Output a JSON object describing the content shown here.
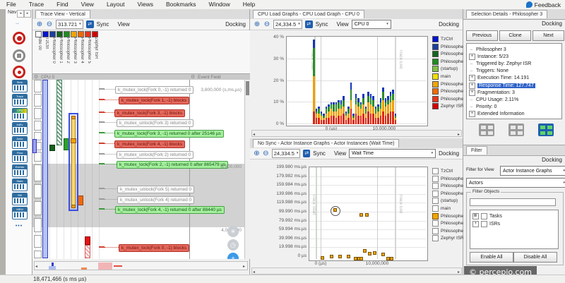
{
  "menu": {
    "items": [
      "File",
      "Trace",
      "Find",
      "View",
      "Layout",
      "Views",
      "Bookmarks",
      "Window",
      "Help"
    ],
    "feedback_label": "Feedback"
  },
  "sidebar": {
    "nav_label": "Nav",
    "record_buttons": [
      {
        "name": "record-button",
        "kind": "record"
      },
      {
        "name": "stop-button",
        "kind": "stop"
      },
      {
        "name": "reconnect-target-button",
        "kind": "target"
      }
    ],
    "view_icons": [
      {
        "name": "stream-view-icon",
        "label": "Strm"
      },
      {
        "name": "vertical-trace-view-icon",
        "label": "Trace"
      },
      {
        "name": "cpu-load-view-icon",
        "label": "CPU"
      },
      {
        "name": "interval-plot-view-icon",
        "label": "IntEv"
      },
      {
        "name": "actor-graph-view-icon",
        "label": "Actor"
      },
      {
        "name": "communication-flow-view-icon",
        "label": "Flow"
      },
      {
        "name": "event-log-view-icon",
        "label": "Events"
      },
      {
        "name": "state-graph-view-icon",
        "label": "State"
      },
      {
        "name": "state-machine-view-icon",
        "label": "SM"
      },
      {
        "name": "memory-view-icon",
        "label": "MEM"
      }
    ],
    "more_label": "•••"
  },
  "actors": [
    {
      "label": "TzCtrl",
      "color": "#0013cf"
    },
    {
      "label": "Philosopher 0",
      "color": "#1b3f9e"
    },
    {
      "label": "Philosopher 1",
      "color": "#14631e"
    },
    {
      "label": "Philosopher 2",
      "color": "#1f8c1f"
    },
    {
      "label": "(startup)",
      "color": "#7dc242"
    },
    {
      "label": "main",
      "color": "#efe000"
    },
    {
      "label": "Philosopher 3",
      "color": "#f0a500"
    },
    {
      "label": "Philosopher 4",
      "color": "#f26a00"
    },
    {
      "label": "Philosopher 5",
      "color": "#e6341c"
    },
    {
      "label": "Zephyr ISR",
      "color": "#d40000"
    }
  ],
  "trace_view": {
    "tab_title": "Trace View - Vertical",
    "toolbar": {
      "zoom_value": "313.721",
      "sync_label": "Sync",
      "view_label": "View",
      "docking_label": "Docking"
    },
    "columns": [
      {
        "label": "Idle 00",
        "color": "#ffffff"
      },
      {
        "label": "TzCtrl",
        "color": "#0013cf"
      },
      {
        "label": "Philosopher 0",
        "color": "#1b3f9e"
      },
      {
        "label": "Philosopher 1",
        "color": "#14631e"
      },
      {
        "label": "Philosopher 2",
        "color": "#1f8c1f"
      },
      {
        "label": "Philosopher 3",
        "color": "#f0a500"
      },
      {
        "label": "Philosopher 4",
        "color": "#f26a00"
      },
      {
        "label": "Philosopher 5",
        "color": "#e6341c"
      },
      {
        "label": "Zephyr ISR",
        "color": "#d40000"
      }
    ],
    "section_headers": [
      "CPU 0",
      "Event Field"
    ],
    "time_labels": [
      {
        "text": "3,800,000 (s,ms,µs)",
        "y": 11
      },
      {
        "text": "3,900,000",
        "y": 120
      },
      {
        "text": "4,000,000",
        "y": 210
      }
    ],
    "events": [
      {
        "text": "k_mutex_lock(Fork 0, -1) returned 0",
        "type": "normal",
        "y": 9,
        "x": 117
      },
      {
        "text": "k_mutex_lock(Fork 1, -1) blocks",
        "type": "blocked",
        "y": 24,
        "x": 122
      },
      {
        "text": "k_mutex_lock(Fork 3, -1) blocks",
        "type": "blocked",
        "y": 42,
        "x": 116
      },
      {
        "text": "k_mutex_unlock(Fork 3) returned 0",
        "type": "normal",
        "y": 56,
        "x": 119
      },
      {
        "text": "k_mutex_lock(Fork 3, -1) returned 0 after 25146 µs",
        "type": "resumed",
        "y": 71,
        "x": 116
      },
      {
        "text": "k_mutex_lock(Fork 4, -1) blocks",
        "type": "blocked",
        "y": 86,
        "x": 116
      },
      {
        "text": "k_mutex_unlock(Fork 2) returned 0",
        "type": "normal",
        "y": 101,
        "x": 119
      },
      {
        "text": "k_mutex_lock(Fork 2, -1) returned 0 after 865479 µs",
        "type": "resumed",
        "y": 115,
        "x": 119
      },
      {
        "text": "k_mutex_unlock(Fork 5) returned 0",
        "type": "normal",
        "y": 150,
        "x": 120
      },
      {
        "text": "k_mutex_unlock(Fork 4) returned 0",
        "type": "normal",
        "y": 165,
        "x": 120
      },
      {
        "text": "k_mutex_lock(Fork 4, -1) returned 0 after 88440 µs",
        "type": "resumed",
        "y": 179,
        "x": 117
      },
      {
        "text": "k_mutex_lock(Fork 0, -1) blocks",
        "type": "blocked",
        "y": 233,
        "x": 122
      }
    ],
    "instances": [
      {
        "actor": "TzCtrl",
        "lane": 1,
        "y": [
          0,
          253
        ],
        "style": "solid",
        "fill": "#b7c4f0",
        "stroke": "#2c3cc8"
      },
      {
        "actor": "Philosopher 1",
        "lane": 3,
        "y": [
          0,
          93
        ],
        "style": "hatch",
        "fill": "#6f9e85",
        "stroke": "#43805a"
      },
      {
        "actor": "Philosopher 0",
        "lane": 2,
        "y": [
          92,
          101
        ],
        "style": "solid",
        "fill": "#14631e",
        "stroke": "#0a3a10"
      },
      {
        "actor": "Philosopher 2",
        "lane": 4,
        "y": [
          83,
          100
        ],
        "style": "solid",
        "fill": "#2f9e2f",
        "stroke": "#17641a"
      },
      {
        "actor": "Philosopher 4",
        "lane": 6,
        "y": [
          164,
          178
        ],
        "style": "solid",
        "fill": "#f26a00",
        "stroke": "#9c4200"
      },
      {
        "actor": "Philosopher 5",
        "lane": 7,
        "y": [
          222,
          234
        ],
        "style": "solid",
        "fill": "#e31414",
        "stroke": "#8e0b0b"
      },
      {
        "actor": "Philosopher 5",
        "lane": 7,
        "y": [
          234,
          253
        ],
        "style": "hatch",
        "fill": "#f0a5a5",
        "stroke": "#d06060"
      }
    ],
    "selected_instance": {
      "actor": "Philosopher 3",
      "lane": 5,
      "y": [
        50,
        183
      ],
      "fill": "#f7d978",
      "cap": "#f0a000",
      "outline": "#3a50e0"
    },
    "idle_blocks": [
      [
        0,
        18
      ],
      [
        20,
        38
      ],
      [
        40,
        56
      ],
      [
        58,
        72
      ],
      [
        74,
        86
      ],
      [
        88,
        100
      ],
      [
        102,
        116
      ],
      [
        120,
        144
      ],
      [
        148,
        168
      ],
      [
        172,
        192
      ],
      [
        196,
        216
      ],
      [
        220,
        238
      ],
      [
        242,
        253
      ]
    ]
  },
  "cpu_panel": {
    "tab_title": "CPU Load Graphs - CPU Load Graph - CPU 0",
    "toolbar": {
      "zoom_value": "24,334.5",
      "sync_label": "Sync",
      "view_label": "View",
      "cpu_select": "CPU 0",
      "docking_label": "Docking"
    }
  },
  "wait_panel": {
    "tab_title": "No Sync - Actor Instance Graphs - Actor Instances (Wait Time)",
    "toolbar": {
      "zoom_value": "24,334.5",
      "sync_label": "Sync",
      "view_label": "View",
      "metric_select": "Wait Time",
      "docking_label": "Docking"
    },
    "checked_actor": "Philosopher 3"
  },
  "selection_panel": {
    "tab_title": "Selection Details - Philosopher 3",
    "docking_label": "Docking",
    "buttons": [
      "Previous",
      "Clone",
      "Next"
    ],
    "tree": [
      {
        "label": "Philosopher 3",
        "expand": null,
        "selected": false
      },
      {
        "label": "Instance: 5/23",
        "expand": "+",
        "selected": false
      },
      {
        "label": "Triggered by: Zephyr ISR",
        "expand": null,
        "selected": false
      },
      {
        "label": "Triggers: None",
        "expand": null,
        "selected": false
      },
      {
        "label": "Execution Time: 14.191",
        "expand": "+",
        "selected": false
      },
      {
        "label": "Response Time: 127.747",
        "expand": "+",
        "selected": true
      },
      {
        "label": "Fragmentation: 3",
        "expand": "+",
        "selected": false
      },
      {
        "label": "CPU Usage: 2.11%",
        "expand": null,
        "selected": false
      },
      {
        "label": "Priority: 0",
        "expand": null,
        "selected": false
      },
      {
        "label": "Extended Information",
        "expand": "+",
        "selected": false
      }
    ],
    "layout_icons": [
      "fragments-layout-icon",
      "intervals-layout-icon",
      "details-grid-icon"
    ]
  },
  "filter_panel": {
    "tab_title": "Filter",
    "docking_label": "Docking",
    "filter_for_view_label": "Filter for View",
    "view_select": "Actor Instance Graphs",
    "category_select": "Actors",
    "group_label": "Filter Objects",
    "search_value": "",
    "tree": [
      {
        "label": "Tasks",
        "checked": "partial"
      },
      {
        "label": "ISRs",
        "checked": "no"
      }
    ],
    "enable_all": "Enable All",
    "disable_all": "Disable All"
  },
  "watermark": "© percepio.com",
  "status_bar": {
    "text": "18,471,466 (s ms µs)"
  },
  "chart_data": [
    {
      "type": "bar",
      "stacked": true,
      "title": "CPU Load Graph - CPU 0",
      "ylabel": "CPU load",
      "ylim": [
        0,
        40
      ],
      "yticks": [
        "40 %",
        "30 %",
        "20 %",
        "10 %",
        "0 %"
      ],
      "xticks": [
        "0 (µs)",
        "10,000,000"
      ],
      "annotations": [
        "Trace Start",
        "Trace End"
      ],
      "legend_position": "right",
      "segment_names": [
        "Zephyr ISR / Philosopher 5",
        "Philosopher 3/4 / main",
        "Philosopher 0-2",
        "TzCtrl"
      ],
      "segment_colors": [
        "#dc2810",
        "#f0a000",
        "#2e8b28",
        "#1337b8"
      ],
      "bar_start_us": 0,
      "bar_pitch_us": 350000,
      "bars": [
        [
          6,
          16,
          13,
          4
        ],
        [
          3,
          2,
          1,
          1
        ],
        [
          3,
          2,
          2,
          1
        ],
        [
          2,
          2,
          1,
          1
        ],
        [
          2,
          1,
          1,
          1
        ],
        [
          3,
          2,
          2,
          1
        ],
        [
          3,
          3,
          2,
          1
        ],
        [
          4,
          3,
          2,
          1
        ],
        [
          4,
          2,
          3,
          1
        ],
        [
          3,
          3,
          3,
          1
        ],
        [
          4,
          3,
          3,
          1
        ],
        [
          4,
          3,
          2,
          2
        ],
        [
          5,
          3,
          3,
          2
        ],
        [
          2,
          2,
          1,
          1
        ],
        [
          3,
          2,
          2,
          1
        ],
        [
          7,
          4,
          5,
          3
        ],
        [
          2,
          1,
          1,
          1
        ],
        [
          5,
          4,
          3,
          2
        ],
        [
          4,
          4,
          2,
          2
        ],
        [
          4,
          3,
          2,
          1
        ],
        [
          5,
          4,
          3,
          2
        ],
        [
          3,
          2,
          2,
          1
        ],
        [
          6,
          4,
          3,
          2
        ],
        [
          5,
          4,
          3,
          2
        ],
        [
          5,
          3,
          3,
          2
        ],
        [
          3,
          2,
          2,
          1
        ],
        [
          3,
          3,
          2,
          1
        ],
        [
          4,
          3,
          3,
          2
        ],
        [
          6,
          5,
          4,
          2
        ],
        [
          4,
          4,
          2,
          2
        ],
        [
          5,
          4,
          2,
          2
        ],
        [
          6,
          4,
          3,
          2
        ],
        [
          6,
          5,
          3,
          2
        ],
        [
          2,
          1,
          1,
          1
        ]
      ]
    },
    {
      "type": "scatter",
      "title": "Actor Instances (Wait Time)",
      "ylim_ms": [
        0,
        200
      ],
      "yticks": [
        "199.980 ms.µs",
        "179.982 ms.µs",
        "159.984 ms.µs",
        "139.986 ms.µs",
        "119.988 ms.µs",
        "99.990 ms.µs",
        "79.992 ms.µs",
        "59.994 ms.µs",
        "39.996 ms.µs",
        "19.998 ms.µs",
        "0 µs"
      ],
      "xticks": [
        "0 (µs)",
        "10,000,000"
      ],
      "annotations": [
        "Trace Start",
        "Trace End"
      ],
      "legend_position": "right",
      "series": [
        {
          "name": "Philosopher 3",
          "color": "#f0a500",
          "points_us_ms": [
            [
              250000,
              2
            ],
            [
              1900000,
              6
            ],
            [
              3400000,
              5.5
            ],
            [
              4900000,
              5
            ],
            [
              6200000,
              1.5
            ],
            [
              6800000,
              1.2
            ],
            [
              7200000,
              1
            ],
            [
              7800000,
              19
            ],
            [
              8700000,
              12
            ],
            [
              9500000,
              13.5
            ],
            [
              11000000,
              11
            ],
            [
              11900000,
              1.5
            ],
            [
              12600000,
              1.2
            ],
            [
              7200000,
              100
            ],
            [
              8200000,
              100
            ],
            [
              2500000,
              110
            ]
          ]
        }
      ],
      "highlighted_point_us_ms": [
        2500000,
        110
      ]
    }
  ]
}
